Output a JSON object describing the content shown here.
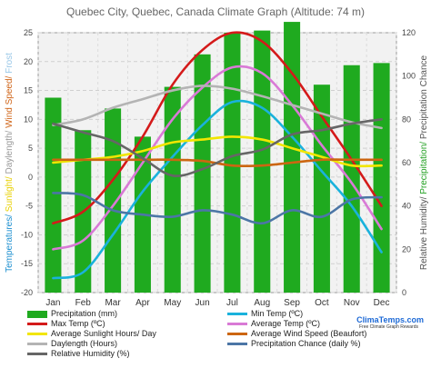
{
  "chart_data": {
    "type": "bar",
    "title": "Quebec City, Quebec, Canada Climate Graph (Altitude: 74 m)",
    "categories": [
      "Jan",
      "Feb",
      "Mar",
      "Apr",
      "May",
      "Jun",
      "Jul",
      "Aug",
      "Sep",
      "Oct",
      "Nov",
      "Dec"
    ],
    "ylim_left": [
      -20,
      25
    ],
    "yticks_left": [
      -20,
      -15,
      -10,
      -5,
      0,
      5,
      10,
      15,
      20,
      25
    ],
    "ylim_right": [
      0,
      120
    ],
    "yticks_right": [
      0,
      20,
      40,
      60,
      80,
      100,
      120
    ],
    "ylabel_left": {
      "parts": [
        {
          "text": "Temperatures/ ",
          "color": "#1e90d0"
        },
        {
          "text": "Sunlight/ ",
          "color": "#e8d000"
        },
        {
          "text": "Daylength/ ",
          "color": "#999999"
        },
        {
          "text": "Wind Speed/ ",
          "color": "#d0661a"
        },
        {
          "text": "Frost",
          "color": "#9ac8e8"
        }
      ]
    },
    "ylabel_right": {
      "parts": [
        {
          "text": "Relative Humidity/ ",
          "color": "#555555"
        },
        {
          "text": "Precipitation/ ",
          "color": "#22a022"
        },
        {
          "text": "Precipitation Chance",
          "color": "#555555"
        }
      ]
    },
    "grid": true,
    "series": [
      {
        "name": "Precipitation (mm)",
        "type": "bar",
        "axis": "right",
        "color": "#1faa1f",
        "values": [
          90,
          75,
          85,
          72,
          95,
          110,
          120,
          121,
          125,
          96,
          105,
          106
        ]
      },
      {
        "name": "Min Temp (ºC)",
        "type": "line",
        "axis": "left",
        "color": "#1ab2dc",
        "values": [
          -17.5,
          -16.5,
          -10,
          -2.5,
          3.5,
          9,
          13,
          12,
          7,
          1,
          -5,
          -13
        ]
      },
      {
        "name": "Max Temp (ºC)",
        "type": "line",
        "axis": "left",
        "color": "#d41a1a",
        "values": [
          -8,
          -6,
          -0.5,
          7,
          16,
          22,
          25,
          23.5,
          18,
          10.5,
          3,
          -5
        ]
      },
      {
        "name": "Average Temp (ºC)",
        "type": "line",
        "axis": "left",
        "color": "#d97ad6",
        "values": [
          -12.5,
          -11,
          -5,
          2.5,
          10,
          15.5,
          19,
          18,
          12.5,
          5.5,
          -1,
          -9
        ]
      },
      {
        "name": "Average Sunlight Hours/ Day",
        "type": "line",
        "axis": "left",
        "color": "#f2e600",
        "values": [
          2.5,
          3,
          3.5,
          4.5,
          6,
          6.5,
          7,
          6.5,
          5,
          3.5,
          2,
          2
        ]
      },
      {
        "name": "Average Wind Speed (Beaufort)",
        "type": "line",
        "axis": "left",
        "color": "#cc6611",
        "values": [
          3,
          3,
          3,
          3,
          3,
          2.8,
          2,
          2,
          2.5,
          3,
          3,
          3
        ]
      },
      {
        "name": "Daylength (Hours)",
        "type": "line",
        "axis": "left",
        "color": "#b4b4b4",
        "values": [
          9,
          10,
          12,
          13.5,
          15,
          15.8,
          15.3,
          14,
          12.5,
          11,
          9.5,
          8.5
        ]
      },
      {
        "name": "Precipitation Chance (daily %)",
        "type": "line",
        "axis": "right",
        "color": "#4c76a6",
        "values": [
          46,
          45,
          38,
          36,
          35,
          38,
          36,
          32,
          38,
          35,
          43,
          44
        ]
      },
      {
        "name": "Relative Humidity (%)",
        "type": "line",
        "axis": "right",
        "color": "#666666",
        "values": [
          78,
          74,
          70,
          62,
          54,
          57,
          63,
          66,
          73,
          75,
          78,
          80
        ]
      }
    ]
  },
  "brand": {
    "name": "ClimaTemps.com",
    "sub": "Free Climate Graph Rewards"
  }
}
